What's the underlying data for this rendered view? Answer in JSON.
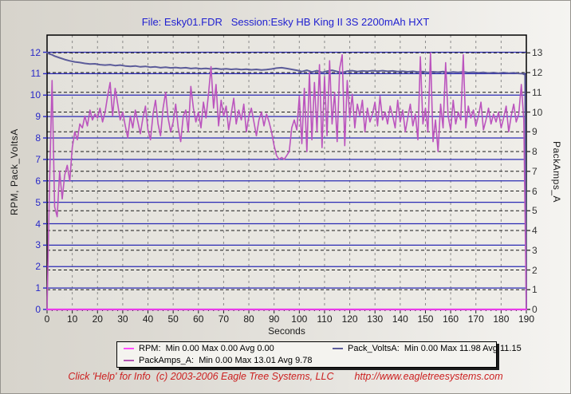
{
  "chart_data": {
    "type": "line",
    "title": "File: Esky01.FDR   Session:Esky HB King II 3S 2200mAh HXT",
    "x_axis": {
      "label": "Seconds",
      "min": 0,
      "max": 190,
      "tick_step": 10
    },
    "left_axis": {
      "label": "RPM, Pack_VoltsA",
      "min": 0,
      "max": 12,
      "tick_step": 1,
      "display_max": 12.8,
      "tick_color": "#2828c8"
    },
    "right_axis": {
      "label": "PackAmps_A",
      "min": 0,
      "max": 13,
      "tick_step": 1,
      "display_max": 13.9,
      "tick_color": "#343434"
    },
    "grid": {
      "h_solid_color": "#2a2ab4",
      "h_dashed_color": "#1a1a1a",
      "v_dashed_color": "#8a8a8a",
      "plot_border_color": "#000000"
    },
    "series": [
      {
        "name": "Pack_VoltsA",
        "axis": "left",
        "color": "#5c5c9a",
        "width": 2,
        "stats": {
          "min": "0.00",
          "max": "11.98",
          "avg": "11.15"
        },
        "points": [
          [
            0,
            11.98
          ],
          [
            1,
            11.92
          ],
          [
            2,
            11.88
          ],
          [
            3,
            11.82
          ],
          [
            5,
            11.74
          ],
          [
            7,
            11.66
          ],
          [
            9,
            11.6
          ],
          [
            11,
            11.55
          ],
          [
            13,
            11.52
          ],
          [
            15,
            11.48
          ],
          [
            17,
            11.45
          ],
          [
            19,
            11.46
          ],
          [
            21,
            11.42
          ],
          [
            23,
            11.4
          ],
          [
            25,
            11.42
          ],
          [
            27,
            11.38
          ],
          [
            29,
            11.4
          ],
          [
            31,
            11.36
          ],
          [
            33,
            11.34
          ],
          [
            35,
            11.36
          ],
          [
            37,
            11.32
          ],
          [
            39,
            11.34
          ],
          [
            41,
            11.3
          ],
          [
            43,
            11.32
          ],
          [
            45,
            11.28
          ],
          [
            47,
            11.3
          ],
          [
            49,
            11.27
          ],
          [
            51,
            11.29
          ],
          [
            53,
            11.26
          ],
          [
            55,
            11.28
          ],
          [
            57,
            11.24
          ],
          [
            59,
            11.26
          ],
          [
            61,
            11.23
          ],
          [
            63,
            11.25
          ],
          [
            65,
            11.22
          ],
          [
            67,
            11.24
          ],
          [
            69,
            11.21
          ],
          [
            71,
            11.23
          ],
          [
            73,
            11.2
          ],
          [
            75,
            11.22
          ],
          [
            77,
            11.19
          ],
          [
            79,
            11.21
          ],
          [
            81,
            11.18
          ],
          [
            83,
            11.2
          ],
          [
            85,
            11.17
          ],
          [
            87,
            11.19
          ],
          [
            89,
            11.22
          ],
          [
            91,
            11.26
          ],
          [
            93,
            11.28
          ],
          [
            95,
            11.24
          ],
          [
            97,
            11.2
          ],
          [
            99,
            11.16
          ],
          [
            101,
            11.1
          ],
          [
            103,
            11.16
          ],
          [
            105,
            11.08
          ],
          [
            107,
            11.14
          ],
          [
            109,
            11.06
          ],
          [
            111,
            11.12
          ],
          [
            113,
            11.16
          ],
          [
            115,
            11.1
          ],
          [
            117,
            11.05
          ],
          [
            119,
            11.12
          ],
          [
            121,
            11.14
          ],
          [
            123,
            11.1
          ],
          [
            125,
            11.13
          ],
          [
            127,
            11.11
          ],
          [
            129,
            11.14
          ],
          [
            131,
            11.12
          ],
          [
            133,
            11.14
          ],
          [
            135,
            11.11
          ],
          [
            137,
            11.13
          ],
          [
            139,
            11.1
          ],
          [
            141,
            11.12
          ],
          [
            143,
            11.09
          ],
          [
            145,
            11.11
          ],
          [
            147,
            11.08
          ],
          [
            149,
            11.1
          ],
          [
            151,
            11.06
          ],
          [
            153,
            11.09
          ],
          [
            155,
            11.07
          ],
          [
            157,
            11.1
          ],
          [
            159,
            11.05
          ],
          [
            161,
            11.08
          ],
          [
            163,
            11.06
          ],
          [
            165,
            11.09
          ],
          [
            167,
            11.05
          ],
          [
            169,
            11.07
          ],
          [
            171,
            11.04
          ],
          [
            173,
            11.06
          ],
          [
            175,
            11.03
          ],
          [
            177,
            11.05
          ],
          [
            179,
            11.02
          ],
          [
            181,
            11.05
          ],
          [
            183,
            11.02
          ],
          [
            185,
            11.04
          ],
          [
            187,
            11.01
          ],
          [
            188.5,
            11.0
          ],
          [
            189.5,
            10.95
          ],
          [
            190,
            0
          ]
        ]
      },
      {
        "name": "PackAmps_A",
        "axis": "right",
        "color": "#bb54be",
        "width": 1.6,
        "stats": {
          "min": "0.00",
          "max": "13.01",
          "avg": "9.78"
        },
        "x0": 0,
        "dx": 1,
        "values": [
          0,
          6.5,
          11.6,
          5.2,
          4.7,
          7.0,
          5.6,
          6.8,
          7.3,
          6.5,
          8.2,
          9.0,
          8.6,
          9.4,
          9.2,
          9.8,
          9.3,
          10.1,
          9.6,
          9.9,
          9.7,
          10.2,
          9.5,
          10.0,
          10.8,
          11.5,
          9.8,
          11.2,
          10.4,
          9.6,
          10.0,
          9.3,
          8.7,
          9.8,
          9.2,
          10.1,
          9.5,
          8.9,
          9.7,
          10.3,
          9.1,
          8.6,
          9.9,
          10.6,
          9.4,
          8.8,
          10.2,
          11.0,
          9.7,
          9.0,
          9.5,
          10.4,
          9.2,
          8.5,
          9.8,
          10.1,
          9.0,
          11.3,
          10.2,
          9.5,
          10.0,
          9.2,
          10.5,
          9.7,
          10.9,
          12.3,
          10.2,
          11.4,
          9.3,
          10.6,
          9.8,
          10.3,
          9.1,
          9.9,
          10.7,
          9.4,
          10.1,
          9.6,
          10.4,
          9.0,
          9.8,
          10.2,
          9.5,
          8.8,
          9.6,
          10.0,
          9.3,
          9.9,
          9.5,
          9.0,
          8.3,
          7.8,
          7.6,
          7.7,
          7.6,
          7.8,
          8.0,
          9.2,
          9.6,
          9.1,
          10.8,
          8.4,
          11.2,
          8.0,
          12.0,
          8.6,
          11.5,
          9.0,
          12.4,
          8.2,
          11.8,
          8.8,
          12.6,
          9.4,
          11.0,
          8.5,
          12.2,
          12.9,
          8.3,
          11.6,
          9.7,
          10.9,
          9.2,
          10.4,
          9.8,
          10.6,
          9.0,
          10.2,
          9.5,
          9.9,
          10.5,
          9.3,
          10.8,
          9.6,
          10.0,
          9.4,
          10.3,
          9.8,
          9.2,
          10.6,
          9.5,
          10.1,
          9.0,
          9.7,
          10.4,
          9.3,
          9.9,
          8.6,
          12.8,
          9.4,
          10.2,
          9.0,
          13.0,
          8.5,
          9.6,
          8.0,
          10.4,
          9.2,
          12.5,
          9.8,
          9.1,
          10.6,
          9.4,
          10.0,
          9.6,
          12.9,
          9.2,
          10.3,
          9.7,
          10.1,
          9.3,
          9.8,
          10.5,
          9.1,
          9.6,
          10.2,
          9.4,
          9.9,
          9.5,
          10.0,
          9.2,
          9.7,
          10.3,
          9.0,
          9.8,
          10.4,
          9.5,
          9.9,
          11.4,
          9.6,
          0
        ]
      },
      {
        "name": "RPM",
        "axis": "left",
        "color": "#e93be9",
        "width": 2.2,
        "stats": {
          "min": "0.00",
          "max": "0.00",
          "avg": "0.00"
        },
        "points": [
          [
            0,
            0
          ],
          [
            190,
            0
          ]
        ]
      }
    ]
  },
  "legend": {
    "entries": [
      {
        "label": "RPM",
        "color": "#ff4dff",
        "text": "RPM:  Min 0.00 Max 0.00 Avg 0.00"
      },
      {
        "label": "Pack_VoltsA",
        "color": "#5c5c9a",
        "text": "Pack_VoltsA:  Min 0.00 Max 11.98 Avg 11.15"
      },
      {
        "label": "PackAmps_A",
        "color": "#b356b3",
        "text": "PackAmps_A:  Min 0.00 Max 13.01 Avg 9.78"
      }
    ]
  },
  "footer": {
    "text": "Click 'Help' for Info  (c) 2003-2006 Eagle Tree Systems, LLC",
    "url": "http://www.eagletreesystems.com"
  }
}
